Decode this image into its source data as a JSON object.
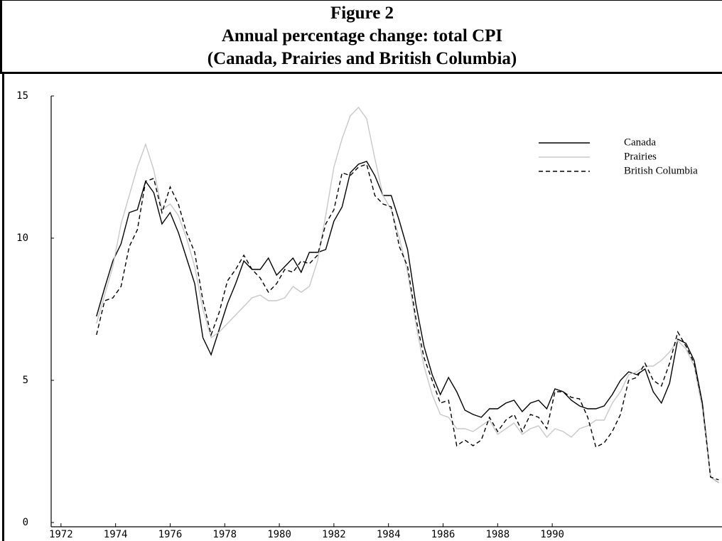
{
  "chart_data": {
    "type": "line",
    "title": [
      "Figure 2",
      "Annual percentage change: total CPI",
      "(Canada, Prairies and British Columbia)"
    ],
    "x": [
      1973.3,
      1973.6,
      1973.9,
      1974.2,
      1974.5,
      1974.8,
      1975.1,
      1975.4,
      1975.7,
      1976.0,
      1976.3,
      1976.6,
      1976.9,
      1977.2,
      1977.5,
      1977.8,
      1978.1,
      1978.4,
      1978.7,
      1979.0,
      1979.3,
      1979.6,
      1979.9,
      1980.2,
      1980.5,
      1980.8,
      1981.1,
      1981.4,
      1981.7,
      1982.0,
      1982.3,
      1982.6,
      1982.9,
      1983.2,
      1983.5,
      1983.8,
      1984.1,
      1984.4,
      1984.7,
      1985.0,
      1985.3,
      1985.6,
      1985.9,
      1986.2,
      1986.5,
      1986.8,
      1987.1,
      1987.4,
      1987.7,
      1988.0,
      1988.3,
      1988.6,
      1988.9,
      1989.2,
      1989.5,
      1989.8,
      1990.1,
      1990.4,
      1990.7,
      1991.0,
      1991.3,
      1991.6,
      1991.9,
      1992.2,
      1992.5,
      1992.8,
      1993.1,
      1993.4,
      1993.7,
      1994.0,
      1994.3,
      1994.6,
      1994.9,
      1995.2,
      1995.5,
      1995.8,
      1996.1
    ],
    "series": [
      {
        "name": "Canada",
        "color": "#000000",
        "line_style": "solid",
        "values": [
          7.25,
          8.25,
          9.2,
          9.8,
          10.9,
          11.0,
          12.0,
          11.6,
          10.5,
          10.9,
          10.2,
          9.3,
          8.4,
          6.5,
          5.9,
          6.8,
          7.7,
          8.4,
          9.2,
          8.9,
          8.9,
          9.3,
          8.7,
          9.0,
          9.3,
          8.8,
          9.5,
          9.5,
          9.6,
          10.6,
          11.1,
          12.3,
          12.6,
          12.7,
          12.2,
          11.5,
          11.5,
          10.6,
          9.6,
          7.7,
          6.2,
          5.2,
          4.5,
          5.1,
          4.6,
          3.95,
          3.8,
          3.7,
          4.0,
          4.0,
          4.2,
          4.3,
          3.9,
          4.2,
          4.3,
          4.0,
          4.7,
          4.6,
          4.3,
          4.1,
          4.0,
          4.0,
          4.1,
          4.5,
          5.0,
          5.3,
          5.2,
          5.4,
          4.6,
          4.2,
          4.9,
          6.45,
          6.3,
          5.7,
          4.2,
          1.6,
          1.4
        ]
      },
      {
        "name": "Prairies",
        "color": "#c8c8c8",
        "line_style": "solid",
        "values": [
          7.0,
          8.0,
          9.0,
          10.5,
          11.5,
          12.5,
          13.3,
          12.4,
          11.0,
          11.2,
          10.8,
          10.0,
          9.0,
          7.5,
          6.5,
          6.7,
          7.0,
          7.3,
          7.6,
          7.9,
          8.0,
          7.8,
          7.8,
          7.9,
          8.3,
          8.1,
          8.3,
          9.2,
          10.8,
          12.5,
          13.5,
          14.3,
          14.6,
          14.2,
          12.8,
          11.5,
          11.0,
          10.0,
          8.8,
          7.0,
          5.5,
          4.5,
          3.8,
          3.7,
          3.3,
          3.3,
          3.2,
          3.4,
          3.6,
          3.1,
          3.3,
          3.5,
          3.1,
          3.3,
          3.4,
          3.0,
          3.3,
          3.2,
          3.0,
          3.3,
          3.4,
          3.6,
          3.6,
          4.2,
          4.6,
          5.2,
          5.3,
          5.5,
          5.5,
          5.7,
          6.0,
          6.4,
          6.1,
          5.5,
          4.0,
          1.6,
          1.4
        ]
      },
      {
        "name": "British Columbia",
        "color": "#000000",
        "line_style": "dashed",
        "values": [
          6.6,
          7.8,
          7.9,
          8.3,
          9.7,
          10.3,
          12.0,
          12.1,
          10.9,
          11.8,
          11.2,
          10.2,
          9.5,
          7.8,
          6.6,
          7.4,
          8.5,
          8.9,
          9.4,
          8.9,
          8.6,
          8.1,
          8.4,
          8.9,
          8.8,
          9.2,
          9.1,
          9.4,
          10.5,
          11.0,
          12.3,
          12.2,
          12.5,
          12.6,
          11.5,
          11.2,
          11.1,
          9.7,
          9.0,
          7.2,
          5.8,
          5.0,
          4.2,
          4.3,
          2.7,
          2.9,
          2.7,
          2.9,
          3.7,
          3.2,
          3.6,
          3.8,
          3.2,
          3.8,
          3.7,
          3.3,
          4.6,
          4.6,
          4.4,
          4.35,
          3.7,
          2.65,
          2.8,
          3.2,
          3.8,
          5.0,
          5.1,
          5.6,
          5.0,
          4.8,
          5.6,
          6.7,
          6.2,
          5.6,
          4.2,
          1.6,
          1.5
        ]
      }
    ],
    "xlim": [
      1971.64,
      1996.22
    ],
    "xticks": [
      1972,
      1974,
      1976,
      1978,
      1980,
      1982,
      1984,
      1986,
      1988,
      1990
    ],
    "ylim": [
      0,
      15
    ],
    "yticks": [
      0,
      5,
      10,
      15
    ],
    "grid": false,
    "legend": "upper right"
  }
}
